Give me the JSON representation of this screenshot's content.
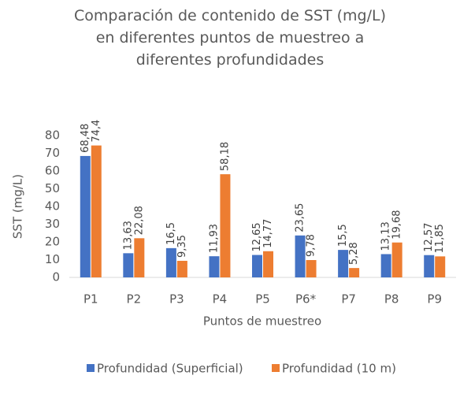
{
  "chart_data": {
    "type": "bar",
    "title": "Comparación de contenido de SST (mg/L) en diferentes puntos de muestreo a diferentes profundidades",
    "x_label": "Puntos de muestreo",
    "y_label": "SST (mg/L)",
    "categories": [
      "P1",
      "P2",
      "P3",
      "P4",
      "P5",
      "P6*",
      "P7",
      "P8",
      "P9"
    ],
    "series": [
      {
        "name": "Profundidad (Superficial)",
        "color": "#4472c4",
        "values": [
          68.48,
          13.63,
          16.5,
          11.93,
          12.65,
          23.65,
          15.5,
          13.13,
          12.57
        ],
        "value_labels": [
          "68,48",
          "13,63",
          "16,5",
          "11,93",
          "12,65",
          "23,65",
          "15,5",
          "13,13",
          "12,57"
        ]
      },
      {
        "name": "Profundidad (10 m)",
        "color": "#ed7d31",
        "values": [
          74.4,
          22.08,
          9.35,
          58.18,
          14.77,
          9.78,
          5.28,
          19.68,
          11.85
        ],
        "value_labels": [
          "74,4",
          "22,08",
          "9,35",
          "58,18",
          "14,77",
          "9,78",
          "5,28",
          "19,68",
          "11,85"
        ]
      }
    ],
    "ylim": [
      0,
      80
    ],
    "yticks": [
      0,
      10,
      20,
      30,
      40,
      50,
      60,
      70,
      80
    ],
    "grid": false,
    "legend": "bottom"
  }
}
